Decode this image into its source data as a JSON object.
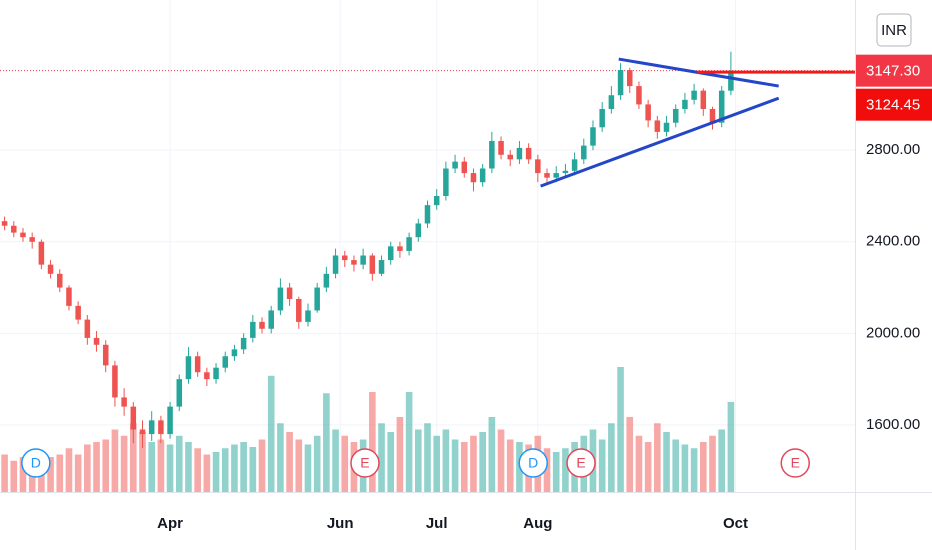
{
  "chart_data": {
    "type": "candlestick",
    "currency": "INR",
    "xlim": [
      -0.5,
      92.5
    ],
    "xticks": [
      {
        "value": 18,
        "label": "Apr"
      },
      {
        "value": 36.5,
        "label": "Jun"
      },
      {
        "value": 47,
        "label": "Jul"
      },
      {
        "value": 58,
        "label": "Aug"
      },
      {
        "value": 79.5,
        "label": "Oct"
      }
    ],
    "ylim": [
      1307,
      3456
    ],
    "yticks": [
      {
        "value": 1600,
        "label": "1600.00"
      },
      {
        "value": 2000,
        "label": "2000.00"
      },
      {
        "value": 2400,
        "label": "2400.00"
      },
      {
        "value": 2800,
        "label": "2800.00"
      }
    ],
    "grid": true,
    "up_color": "#26a69a",
    "down_color": "#ef5350",
    "open": [
      2490,
      2470,
      2440,
      2420,
      2400,
      2300,
      2260,
      2200,
      2120,
      2060,
      1980,
      1950,
      1860,
      1720,
      1680,
      1580,
      1560,
      1620,
      1560,
      1680,
      1800,
      1900,
      1830,
      1800,
      1850,
      1900,
      1930,
      1980,
      2050,
      2020,
      2100,
      2200,
      2150,
      2050,
      2100,
      2200,
      2260,
      2340,
      2320,
      2300,
      2340,
      2260,
      2320,
      2380,
      2360,
      2420,
      2480,
      2560,
      2600,
      2720,
      2750,
      2700,
      2660,
      2720,
      2840,
      2780,
      2760,
      2810,
      2760,
      2700,
      2680,
      2700,
      2710,
      2760,
      2820,
      2900,
      2980,
      3040,
      3150,
      3080,
      3000,
      2930,
      2880,
      2920,
      2980,
      3020,
      3060,
      2980,
      2920,
      3060
    ],
    "high": [
      2510,
      2490,
      2460,
      2440,
      2410,
      2320,
      2280,
      2210,
      2140,
      2080,
      2010,
      1970,
      1880,
      1760,
      1700,
      1620,
      1660,
      1640,
      1700,
      1820,
      1940,
      1920,
      1850,
      1870,
      1920,
      1950,
      2000,
      2080,
      2070,
      2120,
      2240,
      2220,
      2160,
      2130,
      2220,
      2290,
      2370,
      2360,
      2340,
      2370,
      2350,
      2340,
      2400,
      2400,
      2440,
      2500,
      2580,
      2630,
      2750,
      2780,
      2770,
      2720,
      2740,
      2880,
      2860,
      2800,
      2840,
      2830,
      2780,
      2720,
      2730,
      2740,
      2790,
      2850,
      2930,
      3010,
      3080,
      3180,
      3160,
      3100,
      3020,
      2950,
      2950,
      3000,
      3050,
      3090,
      3070,
      2990,
      3080,
      3230
    ],
    "low": [
      2450,
      2420,
      2400,
      2370,
      2280,
      2240,
      2180,
      2100,
      2040,
      1950,
      1920,
      1830,
      1680,
      1640,
      1520,
      1500,
      1530,
      1520,
      1540,
      1660,
      1780,
      1810,
      1770,
      1780,
      1830,
      1880,
      1910,
      1960,
      2000,
      2000,
      2080,
      2120,
      2020,
      2030,
      2090,
      2180,
      2240,
      2290,
      2270,
      2280,
      2230,
      2250,
      2300,
      2330,
      2340,
      2400,
      2460,
      2540,
      2580,
      2700,
      2680,
      2620,
      2640,
      2700,
      2760,
      2730,
      2740,
      2740,
      2660,
      2650,
      2660,
      2680,
      2690,
      2740,
      2800,
      2880,
      2960,
      3020,
      3050,
      2980,
      2900,
      2850,
      2860,
      2900,
      2960,
      3000,
      2950,
      2890,
      2900,
      3040
    ],
    "close": [
      2470,
      2440,
      2420,
      2400,
      2300,
      2260,
      2200,
      2120,
      2060,
      1980,
      1950,
      1860,
      1720,
      1680,
      1580,
      1560,
      1620,
      1560,
      1680,
      1800,
      1900,
      1830,
      1800,
      1850,
      1900,
      1930,
      1980,
      2050,
      2020,
      2100,
      2200,
      2150,
      2050,
      2100,
      2200,
      2260,
      2340,
      2320,
      2300,
      2340,
      2260,
      2320,
      2380,
      2360,
      2420,
      2480,
      2560,
      2600,
      2720,
      2750,
      2700,
      2660,
      2720,
      2840,
      2780,
      2760,
      2810,
      2760,
      2700,
      2680,
      2700,
      2710,
      2760,
      2820,
      2900,
      2980,
      3040,
      3150,
      3080,
      3000,
      2930,
      2880,
      2920,
      2980,
      3020,
      3060,
      2980,
      2920,
      3060,
      3147.3
    ],
    "volume": [
      30,
      25,
      28,
      30,
      32,
      28,
      30,
      35,
      30,
      38,
      40,
      42,
      50,
      45,
      55,
      48,
      40,
      42,
      38,
      45,
      40,
      35,
      30,
      32,
      35,
      38,
      40,
      36,
      42,
      93,
      55,
      48,
      42,
      38,
      45,
      79,
      50,
      45,
      40,
      42,
      80,
      55,
      48,
      60,
      80,
      50,
      55,
      45,
      50,
      42,
      40,
      45,
      48,
      60,
      50,
      42,
      40,
      38,
      45,
      35,
      32,
      35,
      40,
      45,
      50,
      42,
      55,
      100,
      60,
      45,
      40,
      55,
      48,
      42,
      38,
      35,
      40,
      45,
      50,
      72
    ],
    "volume_lim": [
      0,
      100
    ],
    "events": [
      {
        "label": "D",
        "x": 3.4,
        "color": "#2196f3"
      },
      {
        "label": "E",
        "x": 39.2,
        "color": "#e0475a"
      },
      {
        "label": "D",
        "x": 57.5,
        "color": "#2196f3"
      },
      {
        "label": "E",
        "x": 62.7,
        "color": "#e0475a"
      },
      {
        "label": "E",
        "x": 86,
        "color": "#e0475a"
      }
    ],
    "drawings": [
      {
        "points": [
          [
            58.3,
            2643
          ],
          [
            84.2,
            3027
          ]
        ],
        "color": "#2446c8",
        "width": 3
      },
      {
        "points": [
          [
            66.8,
            3198
          ],
          [
            84.2,
            3080
          ]
        ],
        "color": "#2446c8",
        "width": 3
      },
      {
        "points": [
          [
            75.3,
            3141
          ],
          [
            92.5,
            3141
          ]
        ],
        "color": "#f01c1c",
        "width": 3
      }
    ],
    "price_labels": [
      {
        "value": 3147.3,
        "label": "3147.30",
        "color": "#f23645"
      },
      {
        "value": 3124.45,
        "label": "3124.45",
        "color": "#f20d0d"
      }
    ]
  }
}
